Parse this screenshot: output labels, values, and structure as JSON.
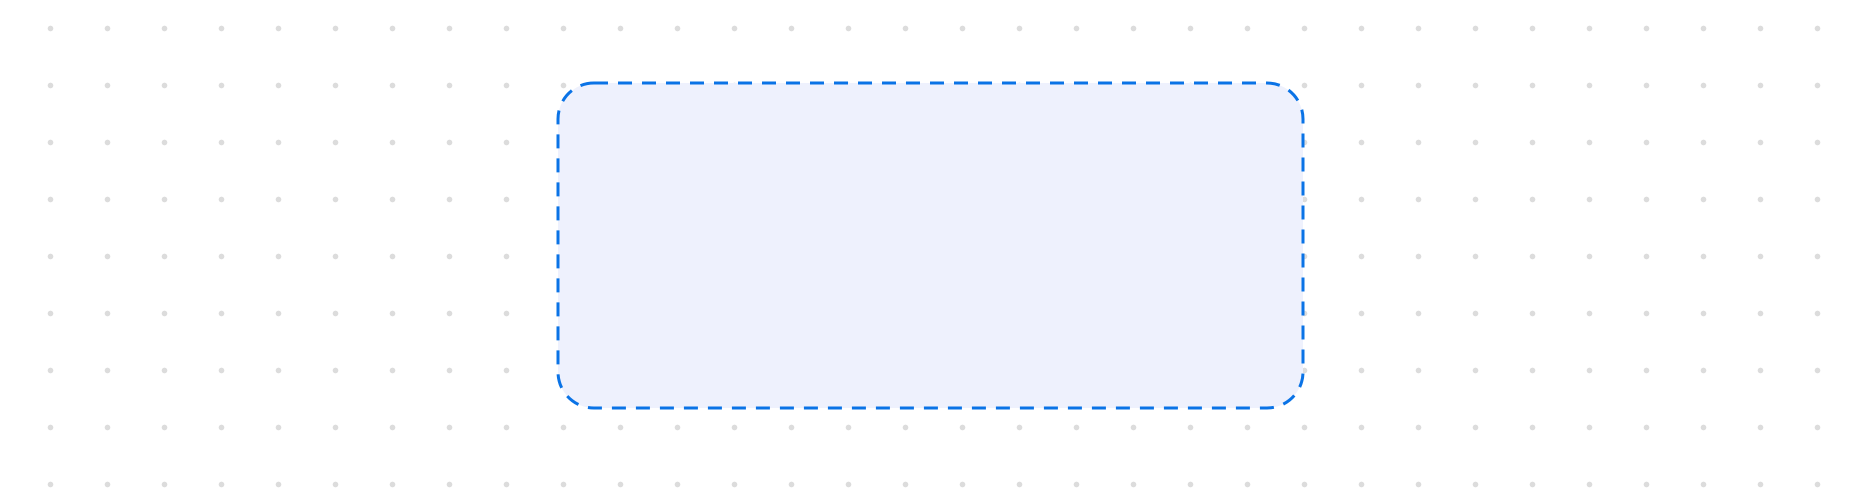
{
  "canvas": {
    "background": "#ffffff",
    "grid_dot_color": "#dcdcdc"
  },
  "selection": {
    "fill_color": "#eef1fd",
    "border_color": "#0a73e6",
    "border_style": "dashed"
  }
}
